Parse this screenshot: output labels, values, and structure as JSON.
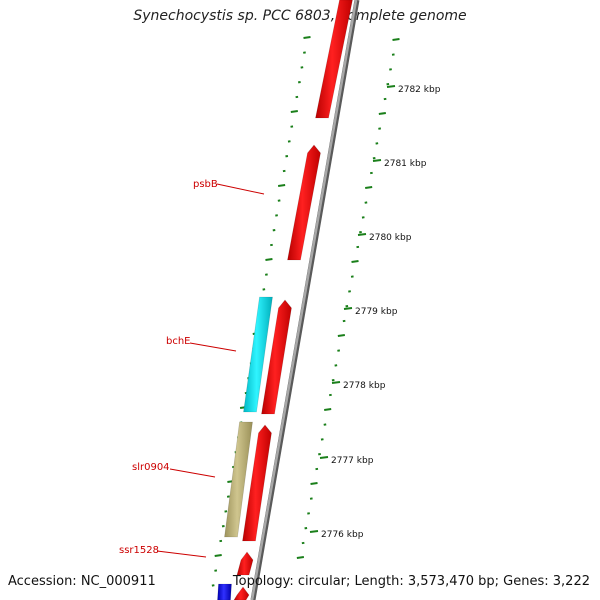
{
  "title": "Synechocystis sp. PCC 6803, complete genome",
  "footer": {
    "accession": "Accession: NC_000911",
    "topology": "Topology: circular; Length: 3,573,470 bp; Genes: 3,222"
  },
  "ruler": {
    "unit": "kbp",
    "labels": [
      "2782 kbp",
      "2781 kbp",
      "2780 kbp",
      "2779 kbp",
      "2778 kbp",
      "2777 kbp",
      "2776 kbp"
    ]
  },
  "gene_labels": [
    "psbB",
    "bchE",
    "slr0904",
    "ssr1528"
  ],
  "colors": {
    "forward_gene": "#ff0000",
    "label": "#cc0000",
    "tick": "#1a7f1a",
    "backbone": "#8c8c8c",
    "cyan_gene": "#00e5f0",
    "khaki_gene": "#bdb279",
    "blue_gene": "#1a1ae0"
  }
}
